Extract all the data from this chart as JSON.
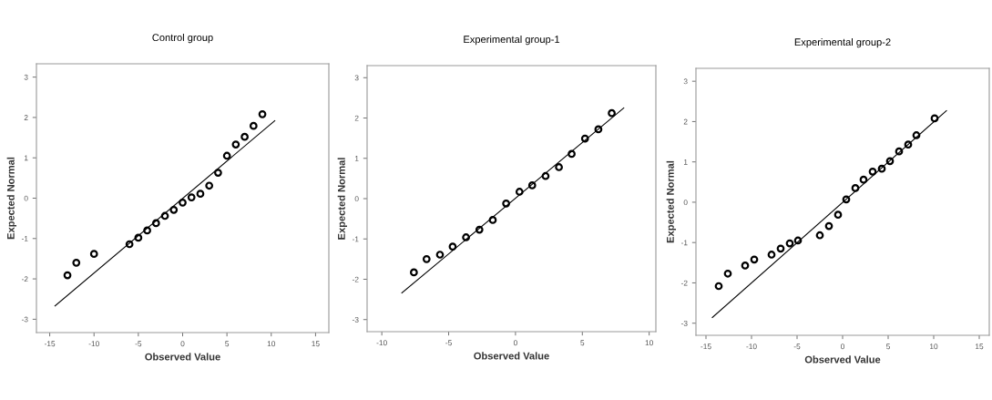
{
  "chart_data": [
    {
      "type": "scatter",
      "title": "Control group",
      "xlabel": "Observed Value",
      "ylabel": "Expected Normal",
      "xlim": [
        -16.5,
        16.5
      ],
      "ylim": [
        -3.33,
        3.33
      ],
      "xticks": [
        -15,
        -10,
        -5,
        0,
        5,
        10,
        15
      ],
      "yticks": [
        -3,
        -2,
        -1,
        0,
        1,
        2,
        3
      ],
      "grid": false,
      "series": [
        {
          "marker": "circle",
          "color": "#000000",
          "x": [
            -13,
            -12,
            -10,
            -6,
            -5,
            -4,
            -3,
            -2,
            -1,
            0,
            1,
            2,
            3,
            4,
            5,
            6,
            7,
            8,
            9
          ],
          "values": [
            -1.91,
            -1.6,
            -1.38,
            -1.14,
            -0.98,
            -0.8,
            -0.62,
            -0.44,
            -0.29,
            -0.11,
            0.02,
            0.11,
            0.31,
            0.63,
            1.05,
            1.33,
            1.52,
            1.79,
            2.08
          ]
        },
        {
          "type": "line",
          "color": "#000000",
          "x": [
            -14.4,
            10.4
          ],
          "values": [
            -2.67,
            1.92
          ]
        }
      ]
    },
    {
      "type": "scatter",
      "title": "Experimental group-1",
      "xlabel": "Observed Value",
      "ylabel": "Expected Normal",
      "xlim": [
        -11.1,
        10.5
      ],
      "ylim": [
        -3.3,
        3.3
      ],
      "xticks": [
        -10,
        -5,
        0,
        5,
        10
      ],
      "yticks": [
        -3,
        -2,
        -1,
        0,
        1,
        2,
        3
      ],
      "grid": false,
      "series": [
        {
          "marker": "circle",
          "color": "#000000",
          "x": [
            -7.6,
            -6.65,
            -5.65,
            -4.7,
            -3.7,
            -2.7,
            -1.7,
            -0.7,
            0.3,
            1.25,
            2.25,
            3.25,
            4.2,
            5.2,
            6.2,
            7.2
          ],
          "values": [
            -1.83,
            -1.5,
            -1.39,
            -1.19,
            -0.96,
            -0.77,
            -0.53,
            -0.12,
            0.17,
            0.33,
            0.56,
            0.78,
            1.11,
            1.49,
            1.72,
            2.12
          ]
        },
        {
          "type": "line",
          "color": "#000000",
          "x": [
            -8.5,
            8.1
          ],
          "values": [
            -2.34,
            2.25
          ]
        }
      ]
    },
    {
      "type": "scatter",
      "title": "Experimental group-2",
      "xlabel": "Observed Value",
      "ylabel": "Expected Normal",
      "xlim": [
        -16.1,
        16.1
      ],
      "ylim": [
        -3.3,
        3.32
      ],
      "xticks": [
        -15,
        -10,
        -5,
        0,
        5,
        10,
        15
      ],
      "yticks": [
        -3,
        -2,
        -1,
        0,
        1,
        2,
        3
      ],
      "grid": false,
      "series": [
        {
          "marker": "circle",
          "color": "#000000",
          "x": [
            -13.6,
            -12.6,
            -10.7,
            -9.7,
            -7.8,
            -6.8,
            -5.8,
            -4.9,
            -2.5,
            -1.5,
            -0.5,
            0.4,
            1.4,
            2.3,
            3.3,
            4.3,
            5.2,
            6.2,
            7.2,
            8.1,
            10.1
          ],
          "values": [
            -2.08,
            -1.77,
            -1.57,
            -1.42,
            -1.3,
            -1.15,
            -1.02,
            -0.95,
            -0.82,
            -0.59,
            -0.31,
            0.07,
            0.35,
            0.56,
            0.76,
            0.83,
            1.02,
            1.26,
            1.43,
            1.66,
            2.08
          ]
        },
        {
          "type": "line",
          "color": "#000000",
          "x": [
            -14.3,
            11.4
          ],
          "values": [
            -2.86,
            2.27
          ]
        }
      ]
    }
  ]
}
